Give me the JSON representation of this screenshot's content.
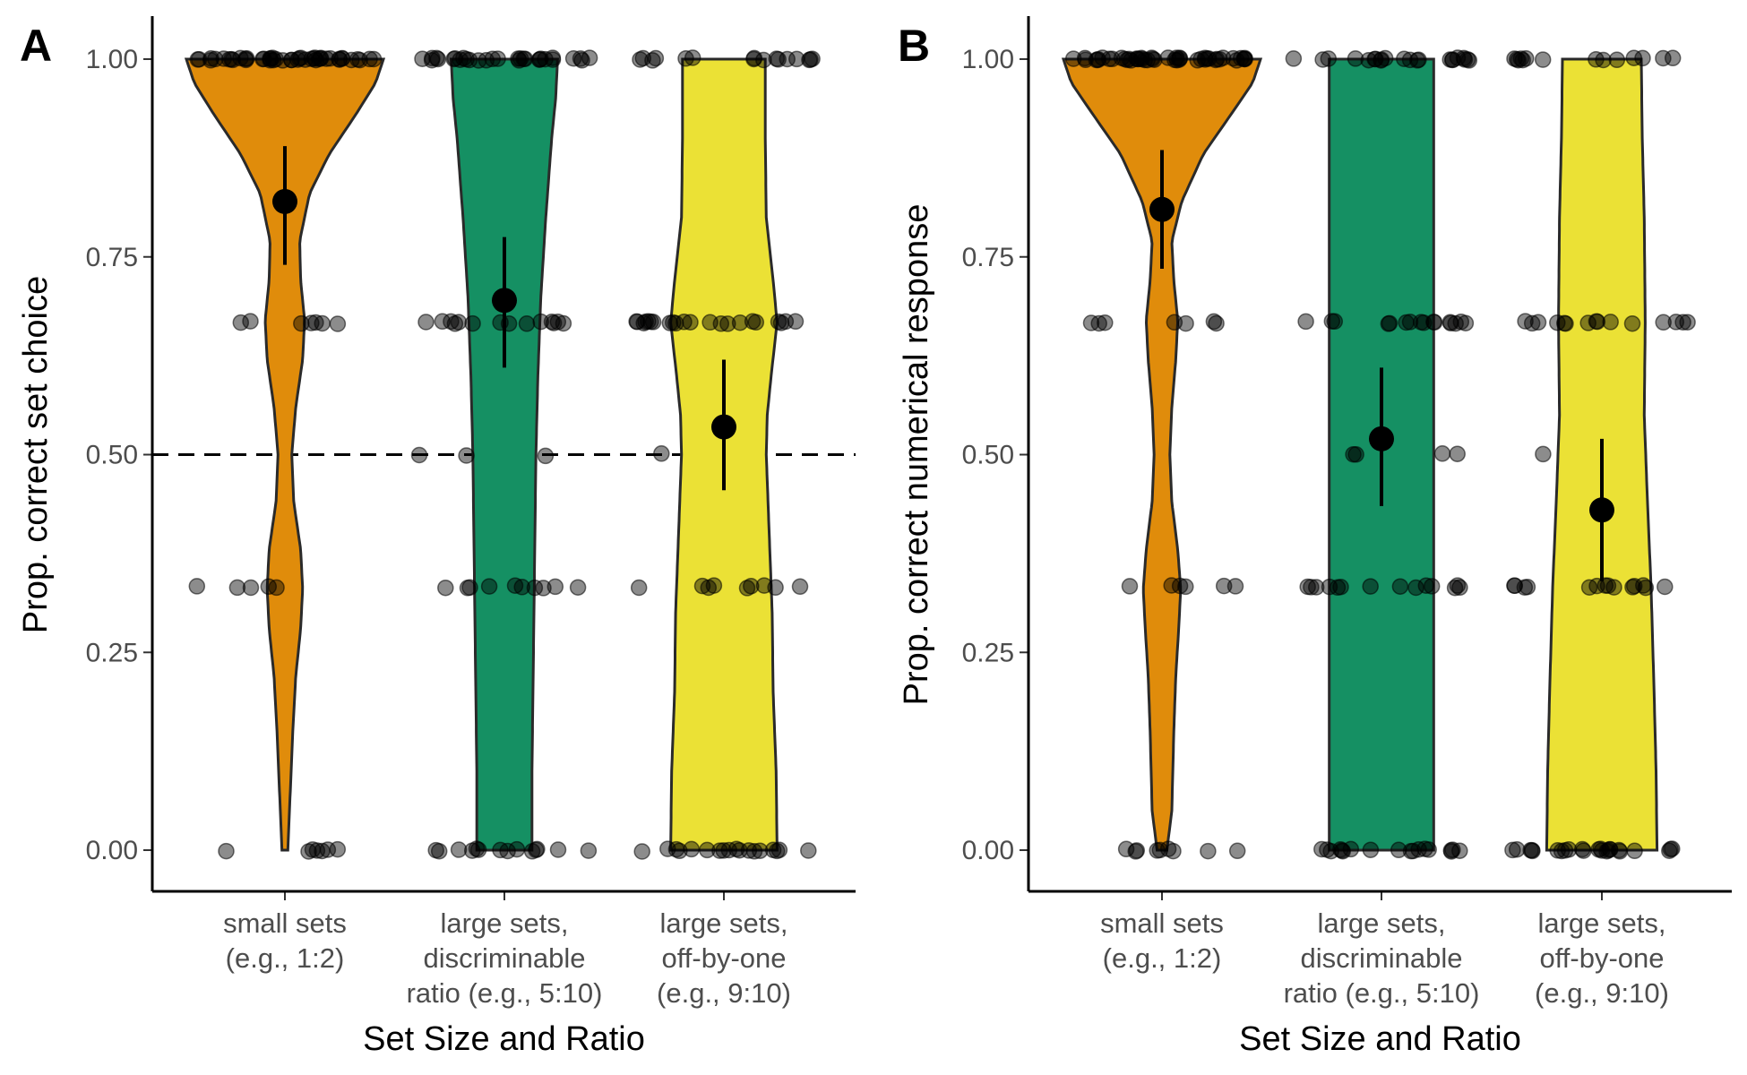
{
  "colors": {
    "small": "#E08C0B",
    "discriminable": "#159063",
    "off_by_one": "#EBE135",
    "points": "#000000",
    "violin_outline": "#2a2a2a"
  },
  "chart_data": [
    {
      "type": "violin",
      "panel_label": "A",
      "xlabel": "Set Size and Ratio",
      "ylabel": "Prop. correct set choice",
      "ylim": [
        0,
        1
      ],
      "yticks": [
        "0.00",
        "0.25",
        "0.50",
        "0.75",
        "1.00"
      ],
      "reference_line": {
        "y": 0.5,
        "style": "dashed"
      },
      "categories": [
        {
          "label_lines": [
            "small sets",
            "(e.g., 1:2)"
          ],
          "color_key": "small",
          "mean": 0.82,
          "ci": [
            0.74,
            0.89
          ],
          "density": [
            [
              0,
              0.03
            ],
            [
              0.06,
              0.05
            ],
            [
              0.15,
              0.08
            ],
            [
              0.22,
              0.11
            ],
            [
              0.28,
              0.16
            ],
            [
              0.33,
              0.18
            ],
            [
              0.38,
              0.16
            ],
            [
              0.44,
              0.09
            ],
            [
              0.5,
              0.07
            ],
            [
              0.56,
              0.11
            ],
            [
              0.62,
              0.18
            ],
            [
              0.67,
              0.2
            ],
            [
              0.72,
              0.16
            ],
            [
              0.77,
              0.15
            ],
            [
              0.83,
              0.25
            ],
            [
              0.88,
              0.45
            ],
            [
              0.93,
              0.72
            ],
            [
              0.97,
              0.92
            ],
            [
              1.0,
              1.0
            ]
          ],
          "counts": {
            "0": 7,
            "0.333": 5,
            "0.667": 7,
            "1": 46
          }
        },
        {
          "label_lines": [
            "large sets,",
            "discriminable",
            "ratio (e.g., 5:10)"
          ],
          "color_key": "discriminable",
          "mean": 0.695,
          "ci": [
            0.61,
            0.775
          ],
          "density": [
            [
              0,
              0.28
            ],
            [
              0.1,
              0.28
            ],
            [
              0.2,
              0.29
            ],
            [
              0.3,
              0.3
            ],
            [
              0.4,
              0.31
            ],
            [
              0.5,
              0.32
            ],
            [
              0.6,
              0.34
            ],
            [
              0.7,
              0.37
            ],
            [
              0.8,
              0.42
            ],
            [
              0.9,
              0.48
            ],
            [
              0.95,
              0.52
            ],
            [
              1.0,
              0.54
            ]
          ],
          "counts": {
            "0": 14,
            "0.333": 10,
            "0.5": 3,
            "0.667": 14,
            "1": 30
          }
        },
        {
          "label_lines": [
            "large sets,",
            "off-by-one",
            "(e.g., 9:10)"
          ],
          "color_key": "off_by_one",
          "mean": 0.535,
          "ci": [
            0.455,
            0.62
          ],
          "density": [
            [
              0,
              0.54
            ],
            [
              0.1,
              0.53
            ],
            [
              0.2,
              0.5
            ],
            [
              0.3,
              0.49
            ],
            [
              0.4,
              0.46
            ],
            [
              0.5,
              0.43
            ],
            [
              0.55,
              0.44
            ],
            [
              0.6,
              0.48
            ],
            [
              0.667,
              0.54
            ],
            [
              0.72,
              0.5
            ],
            [
              0.8,
              0.43
            ],
            [
              0.9,
              0.42
            ],
            [
              1.0,
              0.42
            ]
          ],
          "counts": {
            "0": 18,
            "0.333": 9,
            "0.5": 1,
            "0.667": 22,
            "1": 16
          }
        }
      ]
    },
    {
      "type": "violin",
      "panel_label": "B",
      "xlabel": "Set Size and Ratio",
      "ylabel": "Prop. correct numerical response",
      "ylim": [
        0,
        1
      ],
      "yticks": [
        "0.00",
        "0.25",
        "0.50",
        "0.75",
        "1.00"
      ],
      "categories": [
        {
          "label_lines": [
            "small sets",
            "(e.g., 1:2)"
          ],
          "color_key": "small",
          "mean": 0.81,
          "ci": [
            0.735,
            0.885
          ],
          "density": [
            [
              0,
              0.05
            ],
            [
              0.05,
              0.1
            ],
            [
              0.15,
              0.12
            ],
            [
              0.22,
              0.14
            ],
            [
              0.28,
              0.17
            ],
            [
              0.33,
              0.19
            ],
            [
              0.38,
              0.16
            ],
            [
              0.44,
              0.1
            ],
            [
              0.5,
              0.08
            ],
            [
              0.56,
              0.1
            ],
            [
              0.62,
              0.14
            ],
            [
              0.67,
              0.16
            ],
            [
              0.72,
              0.12
            ],
            [
              0.77,
              0.1
            ],
            [
              0.82,
              0.2
            ],
            [
              0.88,
              0.42
            ],
            [
              0.93,
              0.7
            ],
            [
              0.97,
              0.92
            ],
            [
              1.0,
              1.0
            ]
          ],
          "counts": {
            "0": 9,
            "0.333": 6,
            "0.667": 7,
            "1": 48
          }
        },
        {
          "label_lines": [
            "large sets,",
            "discriminable",
            "ratio (e.g., 5:10)"
          ],
          "color_key": "discriminable",
          "mean": 0.52,
          "ci": [
            0.435,
            0.61
          ],
          "density": [
            [
              0,
              0.53
            ],
            [
              0.25,
              0.53
            ],
            [
              0.5,
              0.53
            ],
            [
              0.75,
              0.53
            ],
            [
              1.0,
              0.53
            ]
          ],
          "counts": {
            "0": 18,
            "0.333": 14,
            "0.5": 4,
            "0.667": 16,
            "1": 22
          }
        },
        {
          "label_lines": [
            "large sets,",
            "off-by-one",
            "(e.g., 9:10)"
          ],
          "color_key": "off_by_one",
          "mean": 0.43,
          "ci": [
            0.34,
            0.52
          ],
          "density": [
            [
              0,
              0.56
            ],
            [
              0.1,
              0.55
            ],
            [
              0.2,
              0.53
            ],
            [
              0.33,
              0.5
            ],
            [
              0.45,
              0.46
            ],
            [
              0.55,
              0.43
            ],
            [
              0.667,
              0.44
            ],
            [
              0.8,
              0.43
            ],
            [
              0.9,
              0.41
            ],
            [
              1.0,
              0.4
            ]
          ],
          "counts": {
            "0": 24,
            "0.333": 14,
            "0.5": 1,
            "0.667": 15,
            "1": 14
          }
        }
      ]
    }
  ]
}
